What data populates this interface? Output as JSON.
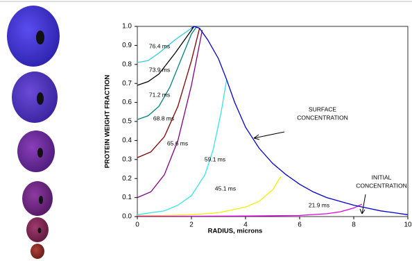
{
  "chart_data": {
    "type": "line",
    "x_label": "RADIUS, microns",
    "y_label": "PROTEIN WEIGHT FRACTION",
    "xlim": [
      0,
      10
    ],
    "xticks": [
      0,
      2,
      4,
      6,
      8,
      10
    ],
    "ylim": [
      0,
      1.0
    ],
    "yticks": [
      {
        "value": 0,
        "label": "0.0"
      },
      0.1,
      0.2,
      0.3,
      0.4,
      0.5,
      0.6,
      0.7,
      0.8,
      0.9,
      {
        "value": 1,
        "label": "1.0"
      }
    ],
    "series": [
      {
        "name": "76.4 ms",
        "color": "#33cce0",
        "x": [
          0,
          0.4,
          0.8,
          1.4,
          1.9,
          2.1
        ],
        "values": [
          0.81,
          0.82,
          0.86,
          0.93,
          0.98,
          1.0
        ]
      },
      {
        "name": "73.9 ms",
        "color": "#000000",
        "x": [
          0,
          0.4,
          0.8,
          1.4,
          1.9,
          2.1
        ],
        "values": [
          0.69,
          0.71,
          0.75,
          0.86,
          0.96,
          1.0
        ]
      },
      {
        "name": "71.2 ms",
        "color": "#008080",
        "x": [
          0,
          0.4,
          0.8,
          1.2,
          1.6,
          2.0,
          2.2
        ],
        "values": [
          0.51,
          0.53,
          0.58,
          0.68,
          0.82,
          0.96,
          1.0
        ]
      },
      {
        "name": "68.8 ms",
        "color": "#800000",
        "x": [
          0,
          0.5,
          1.0,
          1.5,
          2.0,
          2.3
        ],
        "values": [
          0.31,
          0.34,
          0.42,
          0.58,
          0.82,
          0.99
        ]
      },
      {
        "name": "65.6 ms",
        "color": "#800080",
        "x": [
          0,
          0.5,
          1.0,
          1.5,
          2.0,
          2.4
        ],
        "values": [
          0.1,
          0.13,
          0.22,
          0.4,
          0.69,
          0.98
        ]
      },
      {
        "name": "59.1 ms",
        "color": "#33e6e6",
        "x": [
          0,
          0.5,
          1,
          1.5,
          2,
          2.5,
          2.8,
          3.1,
          3.3
        ],
        "values": [
          0.01,
          0.02,
          0.03,
          0.06,
          0.11,
          0.22,
          0.35,
          0.55,
          0.72
        ]
      },
      {
        "name": "45.1 ms",
        "color": "#f0f000",
        "x": [
          0,
          1,
          2,
          3,
          4,
          4.5,
          5,
          5.3
        ],
        "values": [
          0.005,
          0.006,
          0.01,
          0.02,
          0.05,
          0.08,
          0.14,
          0.21
        ]
      },
      {
        "name": "21.9 ms",
        "color": "#e000e0",
        "x": [
          0,
          2,
          4,
          6,
          7,
          7.5,
          8,
          8.3
        ],
        "values": [
          0.002,
          0.002,
          0.003,
          0.006,
          0.015,
          0.025,
          0.045,
          0.065
        ]
      },
      {
        "color": "#0000cc",
        "x": [
          2.0,
          2.1,
          2.3,
          2.6,
          3,
          3.3,
          3.6,
          4,
          4.5,
          5,
          5.5,
          6,
          6.5,
          7,
          7.5,
          8,
          8.5,
          9,
          9.5,
          10
        ],
        "values": [
          0.99,
          1.0,
          0.99,
          0.93,
          0.83,
          0.72,
          0.6,
          0.47,
          0.36,
          0.28,
          0.22,
          0.17,
          0.13,
          0.1,
          0.08,
          0.06,
          0.045,
          0.03,
          0.02,
          0.01
        ]
      }
    ],
    "annotations": [
      {
        "lines": [
          "SURFACE",
          "CONCENTRATION"
        ]
      },
      {
        "lines": [
          "INITIAL",
          "CONCENTRATION"
        ]
      }
    ]
  }
}
